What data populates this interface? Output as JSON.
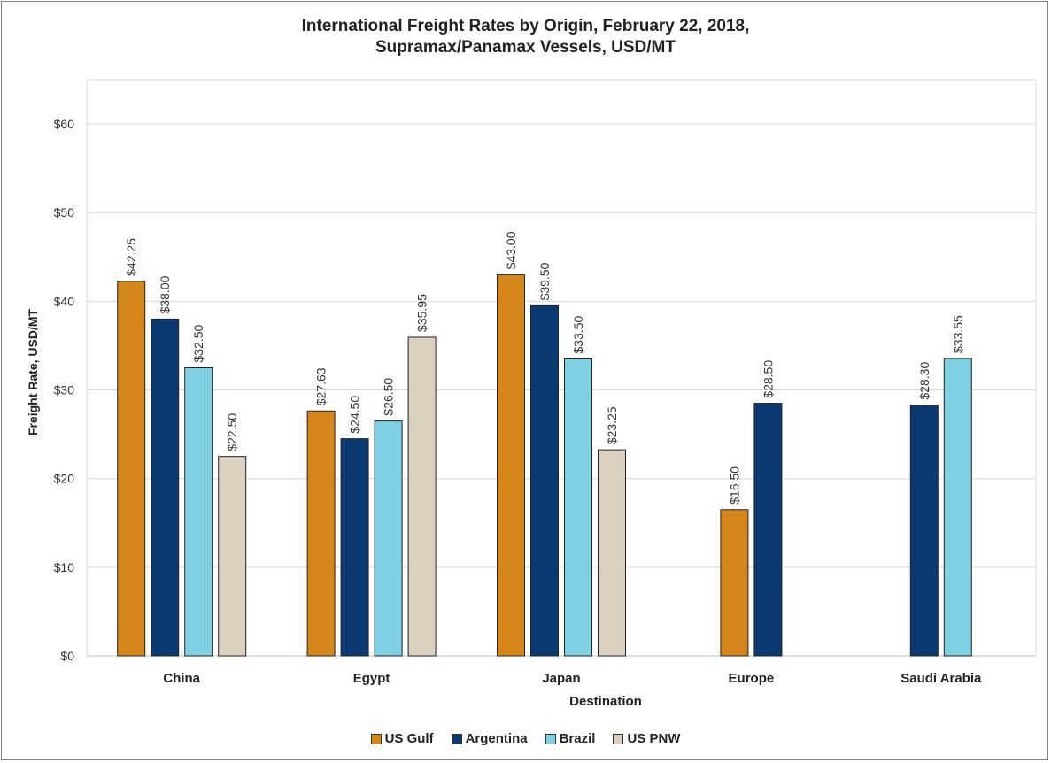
{
  "chart_data": {
    "type": "bar",
    "title_lines": [
      "International Freight Rates by Origin, February 22, 2018,",
      "Supramax/Panamax Vessels, USD/MT"
    ],
    "xlabel": "Destination",
    "ylabel": "Freight Rate, USD/MT",
    "ylim": [
      0,
      65
    ],
    "yticks": [
      0,
      10,
      20,
      30,
      40,
      50,
      60
    ],
    "ytick_labels": [
      "$0",
      "$10",
      "$20",
      "$30",
      "$40",
      "$50",
      "$60"
    ],
    "categories": [
      "China",
      "Egypt",
      "Japan",
      "Europe",
      "Saudi Arabia"
    ],
    "series": [
      {
        "name": "US Gulf",
        "color": "#d4861a",
        "values": [
          42.25,
          27.63,
          43.0,
          16.5,
          null
        ],
        "labels": [
          "$42.25",
          "$27.63",
          "$43.00",
          "$16.50",
          null
        ]
      },
      {
        "name": "Argentina",
        "color": "#0b3a73",
        "values": [
          38.0,
          24.5,
          39.5,
          28.5,
          28.3
        ],
        "labels": [
          "$38.00",
          "$24.50",
          "$39.50",
          "$28.50",
          "$28.30"
        ]
      },
      {
        "name": "Brazil",
        "color": "#7fd0e2",
        "values": [
          32.5,
          26.5,
          33.5,
          null,
          33.55
        ],
        "labels": [
          "$32.50",
          "$26.50",
          "$33.50",
          null,
          "$33.55"
        ]
      },
      {
        "name": "US PNW",
        "color": "#d9d0c0",
        "values": [
          22.5,
          35.95,
          23.25,
          null,
          null
        ],
        "labels": [
          "$22.50",
          "$35.95",
          "$23.25",
          null,
          null
        ]
      }
    ],
    "grid": true,
    "legend_position": "bottom"
  }
}
